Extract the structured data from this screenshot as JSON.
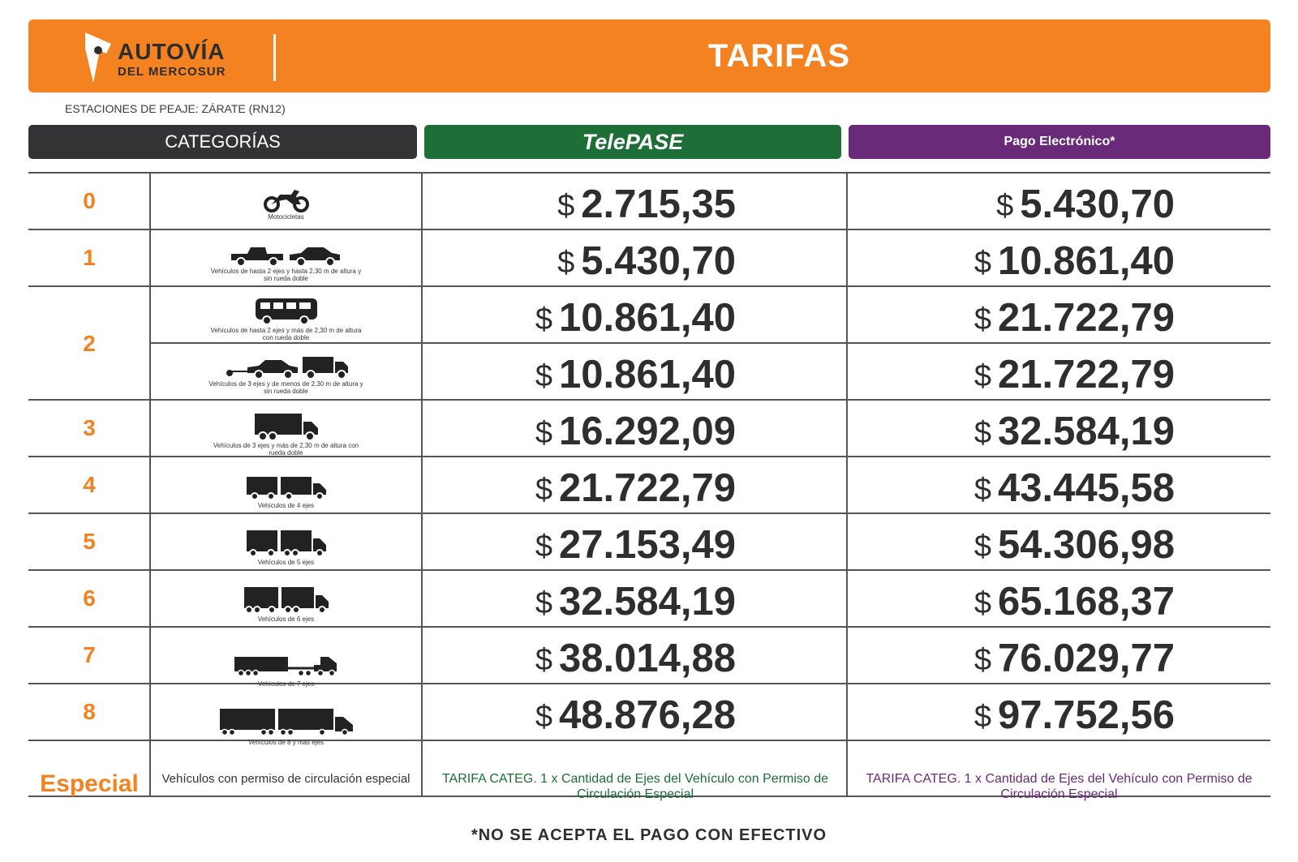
{
  "header": {
    "logo_title": "AUTOVÍA",
    "logo_subtitle": "DEL MERCOSUR",
    "title": "TARIFAS"
  },
  "stations": "ESTACIONES DE PEAJE: ZÁRATE (RN12)",
  "columns": {
    "categories": "CATEGORÍAS",
    "telepase": "TelePASE",
    "pago": "Pago Electrónico*"
  },
  "currency": "$",
  "rows": [
    {
      "category": "0",
      "label": "Motocicletas",
      "icon": "motorcycle-icon",
      "telepase": "2.715,35",
      "pago": "5.430,70"
    },
    {
      "category": "1",
      "label": "Vehículos de hasta 2 ejes y hasta 2,30 m de altura y sin rueda doble",
      "icon": "pickup-and-car-icon",
      "telepase": "5.430,70",
      "pago": "10.861,40"
    },
    {
      "category": "2",
      "label": "Vehículos de hasta 2 ejes y más de 2,30 m de altura con rueda doble",
      "icon": "bus-icon",
      "telepase": "10.861,40",
      "pago": "21.722,79"
    },
    {
      "category": "",
      "label": "Vehículos de 3 ejes y de menos de 2,30 m de altura y sin rueda doble",
      "icon": "car-trailer-truck-icon",
      "telepase": "10.861,40",
      "pago": "21.722,79"
    },
    {
      "category": "3",
      "label": "Vehículos de 3 ejes y más de 2,30 m de altura con rueda doble",
      "icon": "truck-3-axle-icon",
      "telepase": "16.292,09",
      "pago": "32.584,19"
    },
    {
      "category": "4",
      "label": "Vehículos de 4 ejes",
      "icon": "truck-4-axle-icon",
      "telepase": "21.722,79",
      "pago": "43.445,58"
    },
    {
      "category": "5",
      "label": "Vehículos de 5 ejes",
      "icon": "truck-5-axle-icon",
      "telepase": "27.153,49",
      "pago": "54.306,98"
    },
    {
      "category": "6",
      "label": "Vehículos de 6 ejes",
      "icon": "truck-6-axle-icon",
      "telepase": "32.584,19",
      "pago": "65.168,37"
    },
    {
      "category": "7",
      "label": "Vehículos de 7 ejes",
      "icon": "truck-7-axle-icon",
      "telepase": "38.014,88",
      "pago": "76.029,77"
    },
    {
      "category": "8",
      "label": "Vehículos de 8 y más ejes",
      "icon": "truck-8-axle-icon",
      "telepase": "48.876,28",
      "pago": "97.752,56"
    }
  ],
  "especial": {
    "category": "Especial",
    "label": "Vehículos con permiso de circulación especial",
    "telepase": "TARIFA CATEG. 1 x Cantidad de Ejes del Vehículo con Permiso de Circulación Especial",
    "pago": "TARIFA CATEG. 1 x Cantidad de Ejes del Vehículo con Permiso de Circulación Especial"
  },
  "footnote": "*NO SE ACEPTA EL PAGO CON EFECTIVO",
  "colors": {
    "orange": "#f58220",
    "green": "#1d6e37",
    "purple": "#6a2a7a",
    "dark": "#333336"
  }
}
